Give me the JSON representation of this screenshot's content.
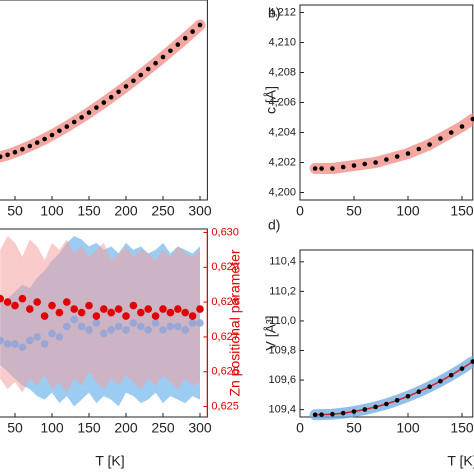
{
  "chart_data": [
    {
      "type": "scatter",
      "x": [
        30,
        40,
        50,
        60,
        70,
        80,
        90,
        100,
        110,
        120,
        130,
        140,
        150,
        160,
        170,
        180,
        190,
        200,
        210,
        220,
        230,
        240,
        250,
        260,
        270,
        280,
        290,
        300
      ],
      "series": [
        {
          "color": "#000000",
          "band_color": "#f08a80",
          "values": [
            0.216,
            0.226,
            0.239,
            0.254,
            0.27,
            0.287,
            0.305,
            0.325,
            0.346,
            0.367,
            0.39,
            0.413,
            0.437,
            0.462,
            0.487,
            0.514,
            0.541,
            0.568,
            0.596,
            0.625,
            0.655,
            0.684,
            0.715,
            0.746,
            0.777,
            0.809,
            0.842,
            0.875
          ]
        }
      ],
      "xlim": [
        0,
        310
      ],
      "xticks": [
        50,
        100,
        150,
        200,
        250,
        300
      ],
      "ylim": [
        0,
        1
      ]
    },
    {
      "type": "scatter",
      "panel_label": "b)",
      "y_label": "c [Å]",
      "x": [
        14,
        20,
        30,
        40,
        50,
        60,
        70,
        80,
        90,
        100,
        110,
        120,
        130,
        140,
        150,
        160
      ],
      "series": [
        {
          "color": "#000000",
          "band_color": "#f08a80",
          "values": [
            4.2016,
            4.2016,
            4.2016,
            4.2017,
            4.2018,
            4.2019,
            4.202,
            4.2022,
            4.2024,
            4.2026,
            4.2029,
            4.2032,
            4.2036,
            4.204,
            4.2044,
            4.2049
          ]
        }
      ],
      "xlim": [
        0,
        160
      ],
      "xticks": [
        0,
        50,
        100,
        150
      ],
      "ylim": [
        4.1995,
        4.2125
      ],
      "yticks": [
        {
          "value": 4.2,
          "label": "4,200"
        },
        {
          "value": 4.202,
          "label": "4,202"
        },
        {
          "value": 4.204,
          "label": "4,204"
        },
        {
          "value": 4.206,
          "label": "4,206"
        },
        {
          "value": 4.208,
          "label": "4,208"
        },
        {
          "value": 4.21,
          "label": "4,210"
        },
        {
          "value": 4.212,
          "label": "4,212"
        }
      ]
    },
    {
      "type": "scatter",
      "x_label": "T [K]",
      "y_label": "Zn positional parameter",
      "y_axis_side": "right",
      "axis_color": "#e00000",
      "x": [
        30,
        40,
        50,
        60,
        70,
        80,
        90,
        100,
        110,
        120,
        130,
        140,
        150,
        160,
        170,
        180,
        190,
        200,
        210,
        220,
        230,
        240,
        250,
        260,
        270,
        280,
        290,
        300
      ],
      "series": [
        {
          "color": "#8fa3d8",
          "band_color": "#4da3e8",
          "values": [
            0.6269,
            0.6268,
            0.6268,
            0.6267,
            0.6269,
            0.627,
            0.6268,
            0.6271,
            0.627,
            0.6273,
            0.6275,
            0.6273,
            0.6272,
            0.6274,
            0.6271,
            0.6272,
            0.6273,
            0.6272,
            0.6274,
            0.6273,
            0.6272,
            0.6274,
            0.6272,
            0.6273,
            0.6273,
            0.6272,
            0.6274,
            0.6274
          ],
          "upper": [
            0.628,
            0.6281,
            0.6283,
            0.6285,
            0.6284,
            0.6287,
            0.6289,
            0.6292,
            0.6294,
            0.6297,
            0.6299,
            0.6298,
            0.6296,
            0.6297,
            0.6295,
            0.6296,
            0.6294,
            0.6297,
            0.6295,
            0.6296,
            0.6294,
            0.6295,
            0.6297,
            0.6294,
            0.6296,
            0.6295,
            0.6294,
            0.6296
          ],
          "lower": [
            0.6262,
            0.626,
            0.6258,
            0.6256,
            0.6255,
            0.6253,
            0.6252,
            0.6254,
            0.6251,
            0.6253,
            0.625,
            0.6252,
            0.6254,
            0.6251,
            0.6253,
            0.6252,
            0.625,
            0.6254,
            0.6253,
            0.6251,
            0.6252,
            0.6254,
            0.6251,
            0.6253,
            0.6252,
            0.6251,
            0.6253,
            0.6252
          ]
        },
        {
          "color": "#e00000",
          "band_color": "#f4a0a0",
          "values": [
            0.6281,
            0.628,
            0.6279,
            0.6281,
            0.6278,
            0.628,
            0.6276,
            0.6279,
            0.6277,
            0.628,
            0.6278,
            0.6277,
            0.6279,
            0.6276,
            0.6278,
            0.6277,
            0.6278,
            0.6276,
            0.6279,
            0.6277,
            0.6278,
            0.6276,
            0.6278,
            0.6277,
            0.6278,
            0.6277,
            0.6276,
            0.6278
          ],
          "upper": [
            0.6295,
            0.6299,
            0.6297,
            0.6293,
            0.6298,
            0.6296,
            0.6292,
            0.6297,
            0.6295,
            0.6298,
            0.6294,
            0.6296,
            0.6293,
            0.6295,
            0.6297,
            0.6292,
            0.6294,
            0.6296,
            0.6293,
            0.6295,
            0.6294,
            0.6292,
            0.6295,
            0.6293,
            0.6296,
            0.6294,
            0.6293,
            0.6295
          ],
          "lower": [
            0.6258,
            0.6255,
            0.6257,
            0.6254,
            0.6258,
            0.6256,
            0.6259,
            0.6255,
            0.6257,
            0.6254,
            0.6258,
            0.6256,
            0.626,
            0.6257,
            0.6255,
            0.6258,
            0.6256,
            0.6259,
            0.6257,
            0.6255,
            0.6258,
            0.6256,
            0.6259,
            0.6257,
            0.6255,
            0.6258,
            0.6256,
            0.6257
          ]
        }
      ],
      "xlim": [
        0,
        310
      ],
      "xticks": [
        50,
        100,
        150,
        200,
        250,
        300
      ],
      "ylim": [
        0.6247,
        0.6301
      ],
      "yticks": [
        {
          "value": 0.625,
          "label": "0,625"
        },
        {
          "value": 0.626,
          "label": "0,626"
        },
        {
          "value": 0.627,
          "label": "0,627"
        },
        {
          "value": 0.628,
          "label": "0,628"
        },
        {
          "value": 0.629,
          "label": "0,629"
        },
        {
          "value": 0.63,
          "label": "0,630"
        }
      ]
    },
    {
      "type": "scatter",
      "panel_label": "d)",
      "x_label": "T [K]",
      "y_label": "V [Å³]",
      "x": [
        14,
        20,
        30,
        40,
        50,
        60,
        70,
        80,
        90,
        100,
        110,
        120,
        130,
        140,
        150,
        160
      ],
      "series": [
        {
          "color": "#000000",
          "band_color": "#6fa8e0",
          "line_color": "#d62020",
          "values": [
            109.365,
            109.366,
            109.369,
            109.376,
            109.387,
            109.401,
            109.418,
            109.438,
            109.463,
            109.49,
            109.521,
            109.555,
            109.592,
            109.633,
            109.677,
            109.725
          ]
        }
      ],
      "xlim": [
        0,
        160
      ],
      "xticks": [
        0,
        50,
        100,
        150
      ],
      "ylim": [
        109.35,
        110.48
      ],
      "yticks": [
        {
          "value": 109.4,
          "label": "109,4"
        },
        {
          "value": 109.6,
          "label": "109,6"
        },
        {
          "value": 109.8,
          "label": "109,8"
        },
        {
          "value": 110.0,
          "label": "110,0"
        },
        {
          "value": 110.2,
          "label": "110,2"
        },
        {
          "value": 110.4,
          "label": "110,4"
        }
      ]
    }
  ]
}
